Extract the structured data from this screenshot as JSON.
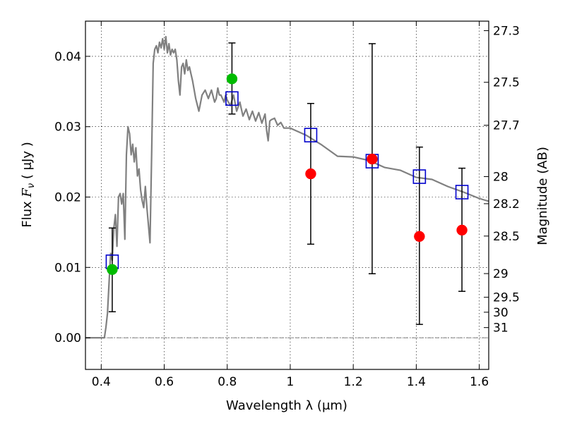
{
  "chart_data": {
    "type": "scatter",
    "xlabel": "Wavelength  λ (μm)",
    "ylabel_left": {
      "prefix": "Flux ",
      "symbol": "F",
      "subscript": "ν",
      "unit": "  ( μJy )"
    },
    "ylabel_right": "Magnitude (AB)",
    "xlim": [
      0.35,
      1.63
    ],
    "ylim": [
      -0.0045,
      0.045
    ],
    "grid": true,
    "x_ticks": [
      {
        "value": 0.4,
        "label": "0.4"
      },
      {
        "value": 0.6,
        "label": "0.6"
      },
      {
        "value": 0.8,
        "label": "0.8"
      },
      {
        "value": 1.0,
        "label": "1"
      },
      {
        "value": 1.2,
        "label": "1.2"
      },
      {
        "value": 1.4,
        "label": "1.4"
      },
      {
        "value": 1.6,
        "label": "1.6"
      }
    ],
    "y_ticks": [
      {
        "value": 0.0,
        "label": "0.00"
      },
      {
        "value": 0.01,
        "label": "0.01"
      },
      {
        "value": 0.02,
        "label": "0.02"
      },
      {
        "value": 0.03,
        "label": "0.03"
      },
      {
        "value": 0.04,
        "label": "0.04"
      }
    ],
    "mag_ticks": [
      {
        "value": 27.3,
        "label": "27.3"
      },
      {
        "value": 27.5,
        "label": "27.5"
      },
      {
        "value": 27.7,
        "label": "27.7"
      },
      {
        "value": 28.0,
        "label": "28"
      },
      {
        "value": 28.2,
        "label": "28.2"
      },
      {
        "value": 28.5,
        "label": "28.5"
      },
      {
        "value": 29.0,
        "label": "29"
      },
      {
        "value": 29.5,
        "label": "29.5"
      },
      {
        "value": 30.0,
        "label": "30"
      },
      {
        "value": 31.0,
        "label": "31"
      }
    ],
    "series": [
      {
        "kind": "sed_model",
        "color": "#808080",
        "points": [
          [
            0.35,
            0.0
          ],
          [
            0.41,
            0.0
          ],
          [
            0.415,
            0.0015
          ],
          [
            0.42,
            0.0035
          ],
          [
            0.425,
            0.008
          ],
          [
            0.43,
            0.012
          ],
          [
            0.435,
            0.011
          ],
          [
            0.44,
            0.0155
          ],
          [
            0.445,
            0.0175
          ],
          [
            0.45,
            0.013
          ],
          [
            0.455,
            0.02
          ],
          [
            0.46,
            0.0205
          ],
          [
            0.465,
            0.019
          ],
          [
            0.47,
            0.0205
          ],
          [
            0.475,
            0.014
          ],
          [
            0.48,
            0.026
          ],
          [
            0.485,
            0.03
          ],
          [
            0.49,
            0.029
          ],
          [
            0.495,
            0.026
          ],
          [
            0.5,
            0.0275
          ],
          [
            0.505,
            0.025
          ],
          [
            0.51,
            0.027
          ],
          [
            0.515,
            0.023
          ],
          [
            0.52,
            0.024
          ],
          [
            0.525,
            0.021
          ],
          [
            0.53,
            0.0195
          ],
          [
            0.535,
            0.0185
          ],
          [
            0.54,
            0.0215
          ],
          [
            0.545,
            0.0185
          ],
          [
            0.55,
            0.016
          ],
          [
            0.555,
            0.0135
          ],
          [
            0.56,
            0.026
          ],
          [
            0.565,
            0.039
          ],
          [
            0.57,
            0.041
          ],
          [
            0.575,
            0.0415
          ],
          [
            0.58,
            0.0405
          ],
          [
            0.585,
            0.042
          ],
          [
            0.59,
            0.0412
          ],
          [
            0.595,
            0.0425
          ],
          [
            0.6,
            0.041
          ],
          [
            0.605,
            0.0428
          ],
          [
            0.61,
            0.0405
          ],
          [
            0.615,
            0.0418
          ],
          [
            0.62,
            0.0402
          ],
          [
            0.625,
            0.041
          ],
          [
            0.63,
            0.0405
          ],
          [
            0.635,
            0.041
          ],
          [
            0.64,
            0.0395
          ],
          [
            0.645,
            0.0365
          ],
          [
            0.65,
            0.0345
          ],
          [
            0.655,
            0.0385
          ],
          [
            0.66,
            0.039
          ],
          [
            0.665,
            0.0375
          ],
          [
            0.67,
            0.0395
          ],
          [
            0.675,
            0.038
          ],
          [
            0.68,
            0.0385
          ],
          [
            0.685,
            0.0375
          ],
          [
            0.69,
            0.0365
          ],
          [
            0.7,
            0.034
          ],
          [
            0.71,
            0.0322
          ],
          [
            0.72,
            0.0345
          ],
          [
            0.73,
            0.0352
          ],
          [
            0.74,
            0.034
          ],
          [
            0.75,
            0.0352
          ],
          [
            0.76,
            0.0335
          ],
          [
            0.765,
            0.034
          ],
          [
            0.77,
            0.0355
          ],
          [
            0.775,
            0.0345
          ],
          [
            0.78,
            0.0345
          ],
          [
            0.79,
            0.0335
          ],
          [
            0.795,
            0.0345
          ],
          [
            0.8,
            0.0338
          ],
          [
            0.81,
            0.033
          ],
          [
            0.82,
            0.0345
          ],
          [
            0.83,
            0.0322
          ],
          [
            0.84,
            0.0335
          ],
          [
            0.85,
            0.0315
          ],
          [
            0.86,
            0.0325
          ],
          [
            0.87,
            0.031
          ],
          [
            0.88,
            0.0322
          ],
          [
            0.89,
            0.0308
          ],
          [
            0.9,
            0.032
          ],
          [
            0.91,
            0.0305
          ],
          [
            0.92,
            0.0318
          ],
          [
            0.925,
            0.0295
          ],
          [
            0.93,
            0.028
          ],
          [
            0.935,
            0.0308
          ],
          [
            0.94,
            0.031
          ],
          [
            0.95,
            0.0312
          ],
          [
            0.96,
            0.0302
          ],
          [
            0.97,
            0.0306
          ],
          [
            0.98,
            0.0298
          ],
          [
            1.0,
            0.0298
          ],
          [
            1.05,
            0.0288
          ],
          [
            1.1,
            0.0274
          ],
          [
            1.15,
            0.0258
          ],
          [
            1.2,
            0.0257
          ],
          [
            1.25,
            0.0252
          ],
          [
            1.3,
            0.0242
          ],
          [
            1.35,
            0.0238
          ],
          [
            1.4,
            0.0228
          ],
          [
            1.45,
            0.0225
          ],
          [
            1.5,
            0.0215
          ],
          [
            1.55,
            0.0207
          ],
          [
            1.6,
            0.0198
          ],
          [
            1.63,
            0.0194
          ]
        ]
      },
      {
        "kind": "errorbars",
        "color": "#000000",
        "points": [
          {
            "x": 0.435,
            "y": 0.0097,
            "lo": 0.0037,
            "hi": 0.0156
          },
          {
            "x": 0.815,
            "y": 0.0368,
            "lo": 0.0318,
            "hi": 0.0419
          },
          {
            "x": 1.065,
            "y": 0.0233,
            "lo": 0.0133,
            "hi": 0.0333
          },
          {
            "x": 1.26,
            "y": 0.0254,
            "lo": 0.0091,
            "hi": 0.0418
          },
          {
            "x": 1.41,
            "y": 0.0144,
            "lo": 0.0019,
            "hi": 0.0271
          },
          {
            "x": 1.545,
            "y": 0.0153,
            "lo": 0.0066,
            "hi": 0.0241
          }
        ]
      },
      {
        "kind": "model_photometry",
        "marker": "open-square",
        "color": "#0000cc",
        "points": [
          [
            0.435,
            0.0108
          ],
          [
            0.815,
            0.034
          ],
          [
            1.065,
            0.0288
          ],
          [
            1.26,
            0.0251
          ],
          [
            1.41,
            0.0229
          ],
          [
            1.545,
            0.0207
          ]
        ]
      },
      {
        "kind": "observed_photometry",
        "marker": "filled-circle",
        "color": "#ff0000",
        "points": [
          [
            1.065,
            0.0233
          ],
          [
            1.26,
            0.0254
          ],
          [
            1.41,
            0.0144
          ],
          [
            1.545,
            0.0153
          ]
        ]
      },
      {
        "kind": "observed_photometry",
        "marker": "filled-circle",
        "color": "#00bb00",
        "points": [
          [
            0.435,
            0.0097
          ],
          [
            0.815,
            0.0368
          ]
        ]
      }
    ]
  }
}
